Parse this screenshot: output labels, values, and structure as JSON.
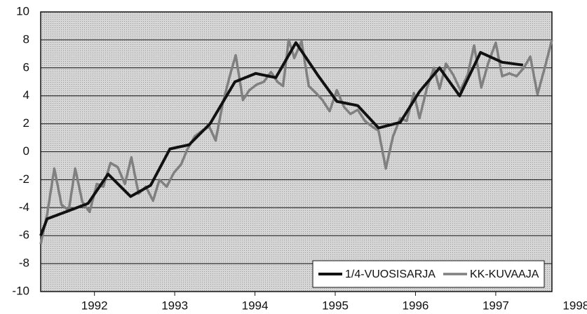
{
  "chart_data": {
    "type": "line",
    "ylim": [
      -10,
      10
    ],
    "yticks": [
      -10,
      -8,
      -6,
      -4,
      -2,
      0,
      2,
      4,
      6,
      8,
      10
    ],
    "grid": true,
    "xlim": [
      1991.33,
      1997.7
    ],
    "xticks": [
      1992,
      1993,
      1994,
      1995,
      1996,
      1997,
      1998
    ],
    "legend": "lower right",
    "series": [
      {
        "name": "1/4-VUOSISARJA",
        "color": "#111111",
        "x": [
          1991.33,
          1991.41,
          1991.69,
          1991.92,
          1992.17,
          1992.45,
          1992.7,
          1992.94,
          1993.18,
          1993.44,
          1993.75,
          1994.01,
          1994.26,
          1994.51,
          1994.78,
          1995.02,
          1995.28,
          1995.54,
          1995.81,
          1996.05,
          1996.3,
          1996.55,
          1996.81,
          1997.08,
          1997.34
        ],
        "values": [
          -6,
          -4.8,
          -4.2,
          -3.7,
          -1.6,
          -3.2,
          -2.4,
          0.2,
          0.5,
          2.0,
          5.0,
          5.6,
          5.3,
          7.8,
          5.5,
          3.6,
          3.3,
          1.7,
          2.1,
          4.3,
          6.0,
          4.0,
          7.1,
          6.4,
          6.2
        ]
      },
      {
        "name": "KK-KUVAAJA",
        "color": "#808080",
        "x": [
          1991.33,
          1991.41,
          1991.5,
          1991.59,
          1991.68,
          1991.76,
          1991.85,
          1991.94,
          1992.03,
          1992.11,
          1992.2,
          1992.29,
          1992.38,
          1992.46,
          1992.55,
          1992.64,
          1992.73,
          1992.81,
          1992.9,
          1992.99,
          1993.08,
          1993.16,
          1993.25,
          1993.34,
          1993.43,
          1993.51,
          1993.6,
          1993.69,
          1993.76,
          1993.85,
          1993.93,
          1994.02,
          1994.11,
          1994.2,
          1994.28,
          1994.35,
          1994.42,
          1994.49,
          1994.58,
          1994.67,
          1994.76,
          1994.84,
          1994.93,
          1995.02,
          1995.11,
          1995.19,
          1995.28,
          1995.37,
          1995.46,
          1995.54,
          1995.63,
          1995.72,
          1995.81,
          1995.89,
          1995.98,
          1996.05,
          1996.14,
          1996.23,
          1996.3,
          1996.38,
          1996.47,
          1996.56,
          1996.65,
          1996.73,
          1996.82,
          1996.91,
          1997.0,
          1997.08,
          1997.17,
          1997.26,
          1997.35,
          1997.43,
          1997.52,
          1997.61,
          1997.7
        ],
        "values": [
          -6.6,
          -4.5,
          -1.2,
          -3.8,
          -4.2,
          -1.2,
          -3.6,
          -4.3,
          -2.3,
          -2.5,
          -0.8,
          -1.1,
          -2.3,
          -0.4,
          -3.0,
          -2.5,
          -3.5,
          -2.0,
          -2.5,
          -1.5,
          -0.9,
          0.2,
          1.1,
          1.5,
          1.8,
          0.8,
          3.5,
          5.5,
          6.9,
          3.7,
          4.4,
          4.8,
          5.0,
          5.7,
          5.0,
          4.7,
          8.0,
          6.7,
          7.9,
          4.7,
          4.2,
          3.7,
          2.9,
          4.4,
          3.2,
          2.7,
          3.0,
          2.2,
          1.8,
          1.5,
          -1.2,
          1.1,
          2.4,
          2.2,
          4.2,
          2.4,
          4.5,
          6.0,
          4.5,
          6.3,
          5.5,
          4.4,
          5.5,
          7.6,
          4.6,
          6.4,
          7.8,
          5.4,
          5.6,
          5.4,
          6.0,
          6.8,
          4.1,
          6.0,
          8.0
        ]
      }
    ]
  }
}
